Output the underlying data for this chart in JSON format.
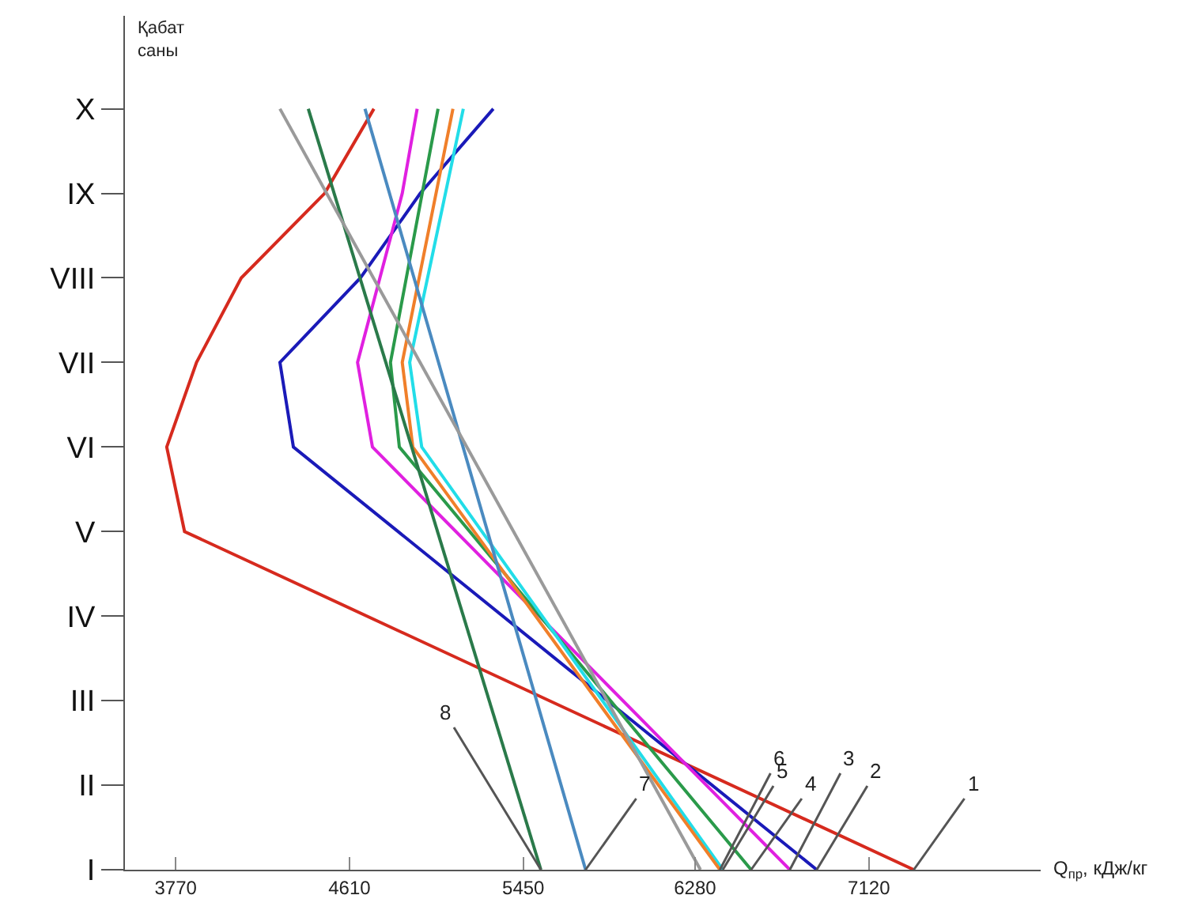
{
  "chart_data": {
    "type": "line",
    "orientation": "horizontal",
    "xlabel": "Q$_{пр}$, кДж/кг",
    "ylabel": "Қабат саны",
    "categories": [
      "X",
      "IX",
      "VIII",
      "VII",
      "VI",
      "V",
      "IV",
      "III",
      "II",
      "I"
    ],
    "xlim": [
      3525,
      7950
    ],
    "xticks": [
      3770,
      4610,
      5450,
      6280,
      7120
    ],
    "marker": "none",
    "line_style": "solid",
    "series": [
      {
        "color": "#d62a1e",
        "values": [
          4728,
          4490,
          4087,
          3871,
          3727,
          3813,
          null,
          null,
          null,
          7337
        ]
      },
      {
        "color": "#1a1ab8",
        "values": [
          5305,
          4952,
          4663,
          4274,
          4339,
          null,
          null,
          null,
          null,
          6868
        ]
      },
      {
        "color": "#e020e0",
        "values": [
          4937,
          4865,
          4757,
          4649,
          4721,
          null,
          null,
          null,
          null,
          6738
        ]
      },
      {
        "color": "#2a9a4a",
        "values": [
          5038,
          null,
          null,
          4808,
          4851,
          null,
          null,
          null,
          null,
          6551
        ]
      },
      {
        "color": "#22dde8",
        "values": [
          5160,
          null,
          null,
          4901,
          4959,
          null,
          null,
          null,
          null,
          6414
        ]
      },
      {
        "color": "#f07f2a",
        "values": [
          5110,
          null,
          null,
          4865,
          4916,
          null,
          null,
          null,
          null,
          6400
        ]
      },
      {
        "color": "#4a8ac0",
        "values": [
          4685,
          null,
          null,
          null,
          null,
          null,
          null,
          null,
          null,
          5751
        ]
      },
      {
        "color": "#2a7a4a",
        "values": [
          4411,
          null,
          null,
          null,
          null,
          null,
          null,
          null,
          null,
          5535
        ]
      },
      {
        "color": "#9a9a9a",
        "values": [
          4274,
          null,
          null,
          null,
          null,
          null,
          null,
          null,
          null,
          6306
        ]
      }
    ],
    "annotations": [
      {
        "text": "1",
        "x": 7337
      },
      {
        "text": "2",
        "x": 6868
      },
      {
        "text": "3",
        "x": 6738
      },
      {
        "text": "4",
        "x": 6551
      },
      {
        "text": "5",
        "x": 6414
      },
      {
        "text": "6",
        "x": 6400
      },
      {
        "text": "7",
        "x": 5751
      },
      {
        "text": "8",
        "x": 5535
      }
    ]
  }
}
